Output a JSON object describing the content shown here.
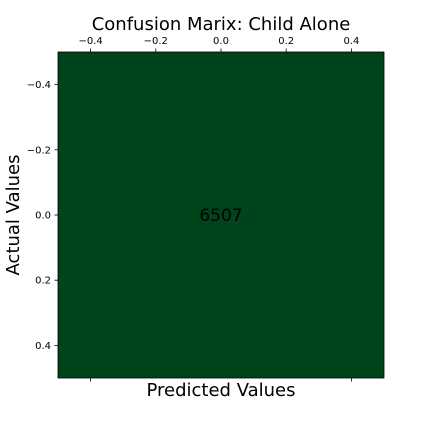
{
  "chart_data": {
    "type": "heatmap",
    "title": "Confusion Marix: Child Alone",
    "xlabel": "Predicted Values",
    "ylabel": "Actual Values",
    "xlim": [
      -0.5,
      0.5
    ],
    "ylim": [
      -0.5,
      0.5
    ],
    "x_axis_position": "top",
    "x_ticks": [
      -0.4,
      -0.2,
      0.0,
      0.2,
      0.4
    ],
    "x_tick_labels": [
      "−0.4",
      "−0.2",
      "0.0",
      "0.2",
      "0.4"
    ],
    "y_ticks": [
      -0.4,
      -0.2,
      0.0,
      0.2,
      0.4
    ],
    "y_tick_labels": [
      "−0.4",
      "−0.2",
      "0.0",
      "0.2",
      "0.4"
    ],
    "bottom_ticks": [
      -0.4,
      0.4
    ],
    "cells": [
      {
        "row": 0,
        "col": 0,
        "value": 6507,
        "label": "6507"
      }
    ],
    "cell_color": "#00441b",
    "grid": false
  }
}
